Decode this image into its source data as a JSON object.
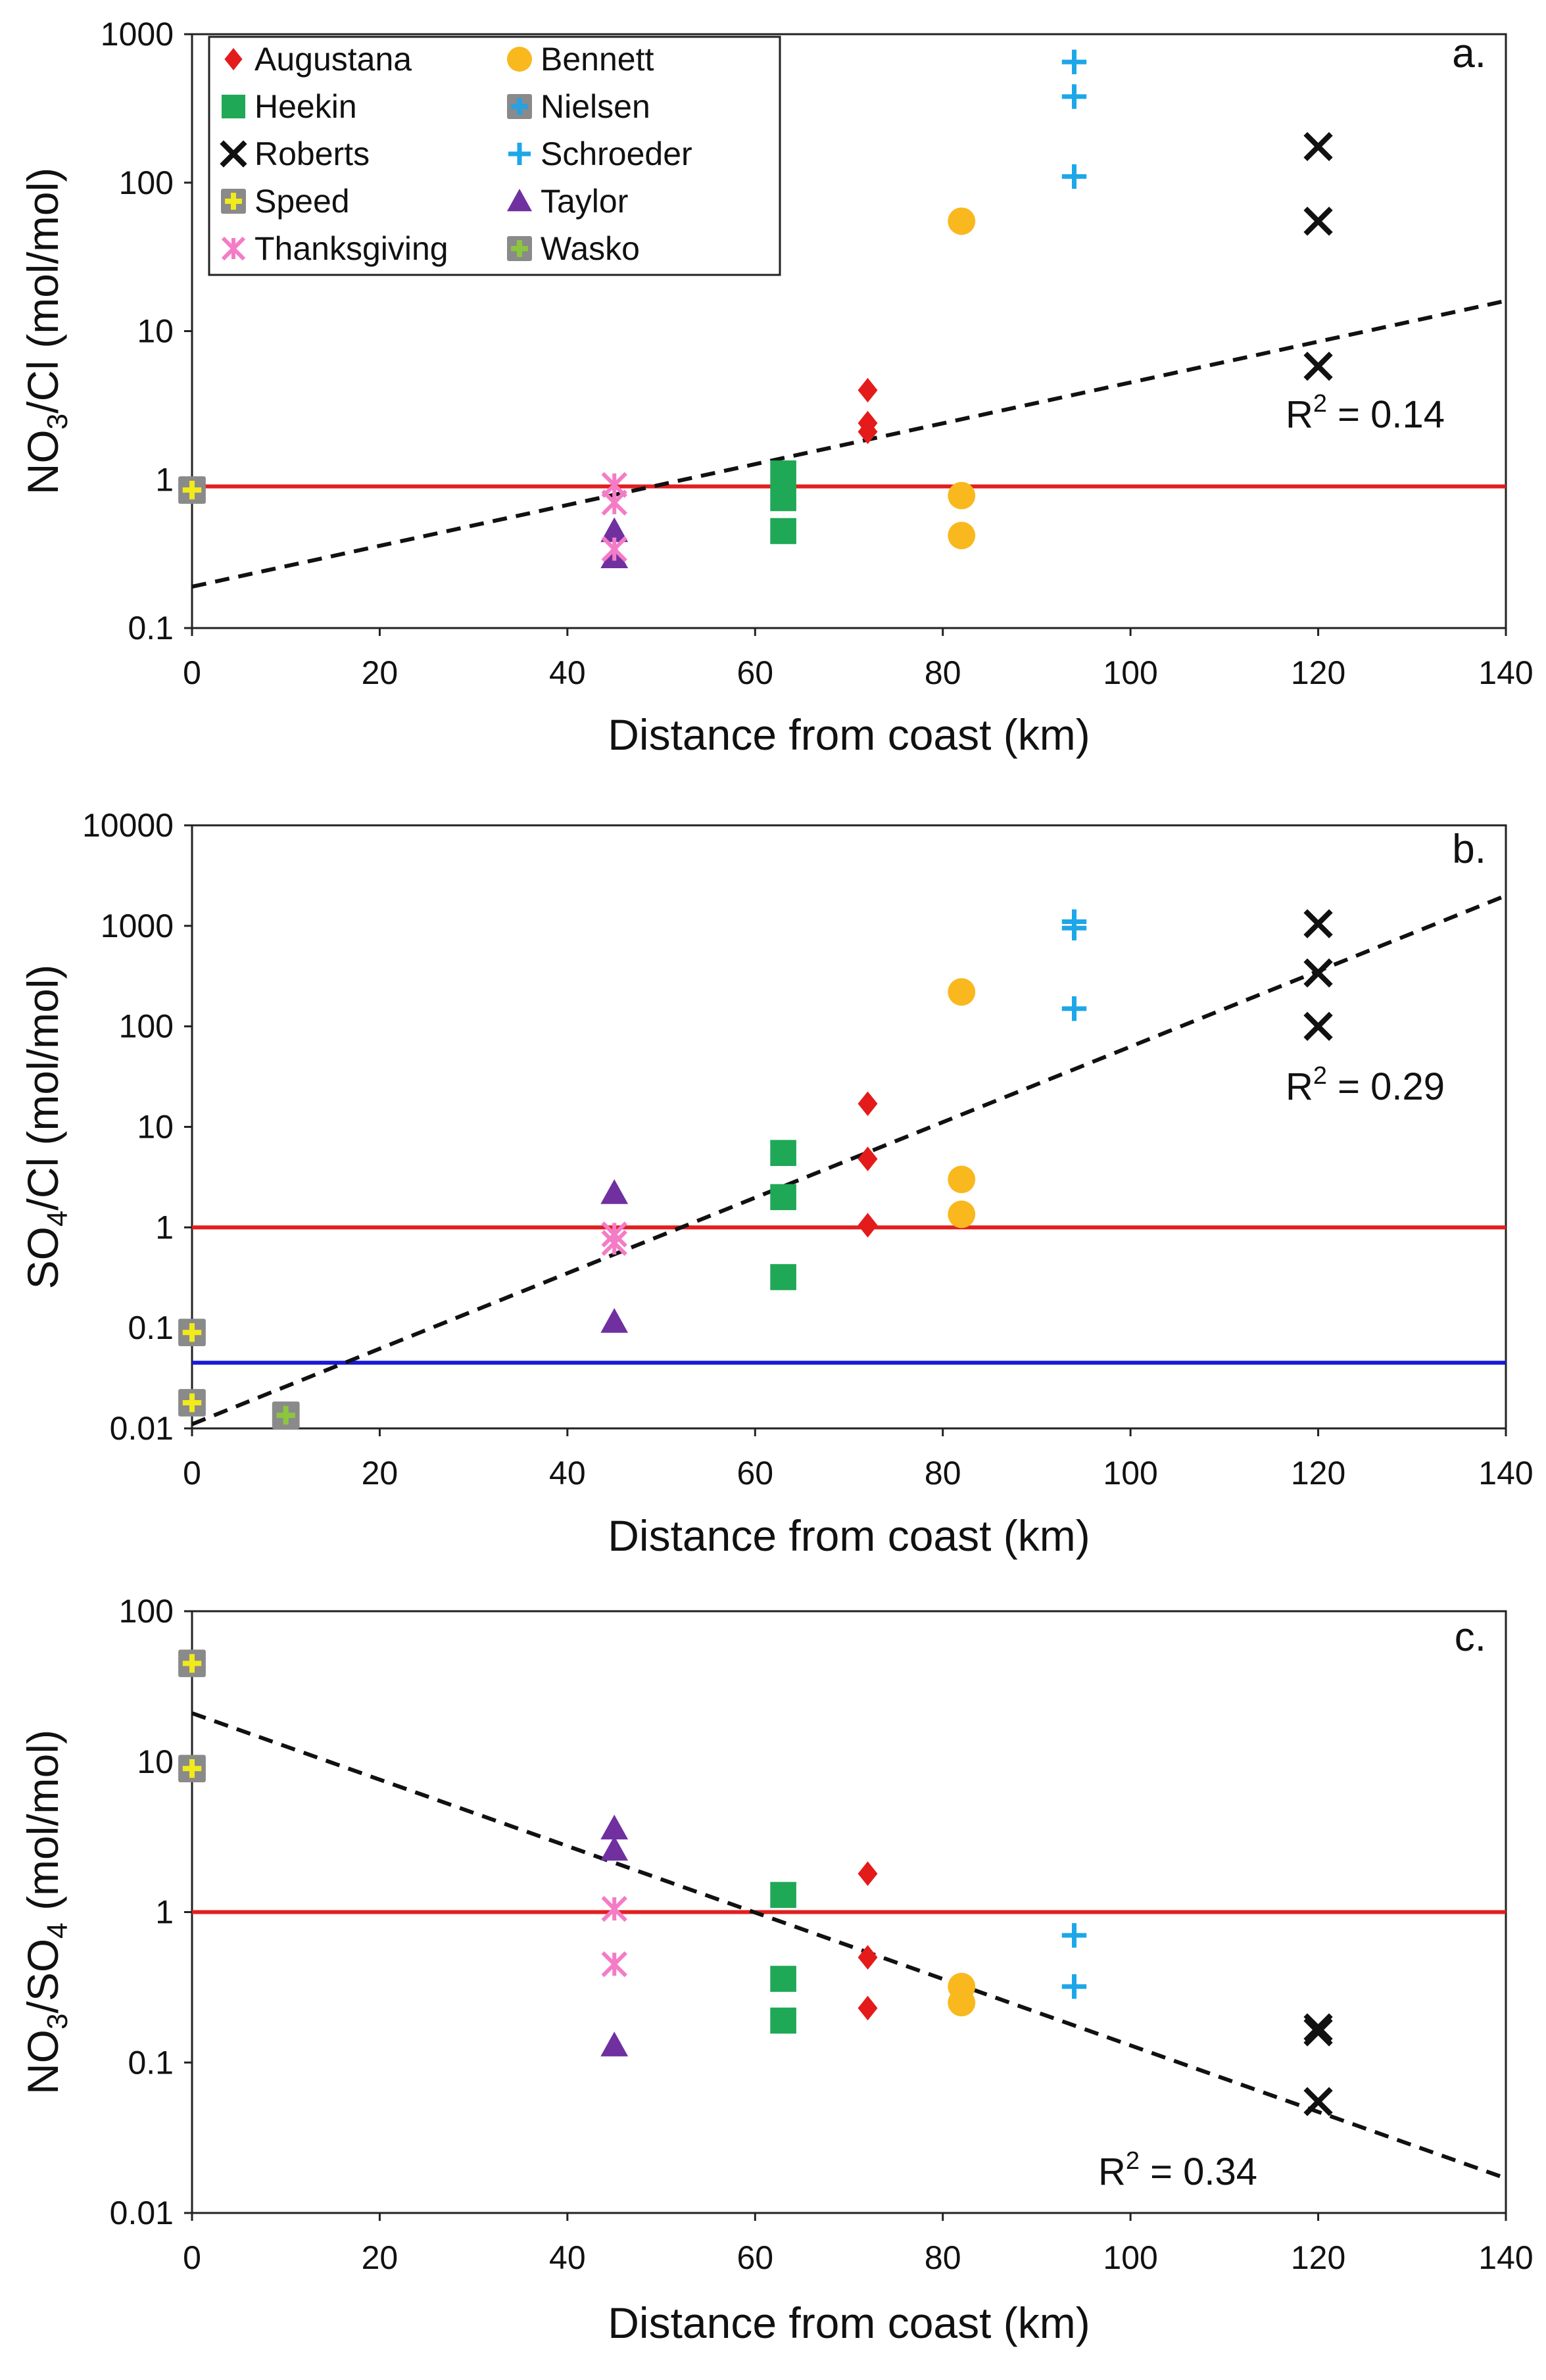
{
  "chart_data": [
    {
      "panel": "a.",
      "type": "scatter",
      "xlabel": "Distance from coast (km)",
      "ylabel_parts": [
        "NO",
        "3",
        "/Cl (mol/mol)"
      ],
      "yscale": "log",
      "xlim": [
        0,
        140
      ],
      "ylim": [
        0.1,
        1000
      ],
      "xticks": [
        "0",
        "20",
        "40",
        "60",
        "80",
        "100",
        "120",
        "140"
      ],
      "yticks": [
        "0.1",
        "1",
        "10",
        "100",
        "1000"
      ],
      "legend_position": "top-left",
      "r2_text": "R² = 0.14",
      "r2_base": "R",
      "r2_sup": "2",
      "r2_rest": " = 0.14",
      "reference_lines": [
        {
          "y": 0.9,
          "color": "#e11f1f"
        }
      ],
      "trendline": {
        "x": [
          0,
          140
        ],
        "y": [
          0.19,
          16
        ],
        "style": "dashed"
      },
      "series": [
        {
          "name": "Augustana",
          "marker": "diamond",
          "color": "#e41b1b",
          "x": [
            72,
            72,
            72
          ],
          "y": [
            4,
            2.4,
            2.1
          ]
        },
        {
          "name": "Bennett",
          "marker": "circle",
          "color": "#f9b81e",
          "x": [
            82,
            82,
            82
          ],
          "y": [
            55,
            0.78,
            0.42
          ]
        },
        {
          "name": "Heekin",
          "marker": "square",
          "color": "#1fa856",
          "x": [
            63,
            63,
            63
          ],
          "y": [
            1.1,
            0.75,
            0.45
          ]
        },
        {
          "name": "Nielsen",
          "marker": "plus-box",
          "color": "#2aa0e0",
          "x": [],
          "y": []
        },
        {
          "name": "Roberts",
          "marker": "x",
          "color": "#111111",
          "x": [
            120,
            120,
            120
          ],
          "y": [
            175,
            55,
            5.8
          ]
        },
        {
          "name": "Schroeder",
          "marker": "plus",
          "color": "#1ea7e8",
          "x": [
            94,
            94,
            94
          ],
          "y": [
            650,
            380,
            110
          ]
        },
        {
          "name": "Speed",
          "marker": "plus-box",
          "color": "#f2ea1a",
          "x": [
            0
          ],
          "y": [
            0.85
          ]
        },
        {
          "name": "Taylor",
          "marker": "triangle",
          "color": "#7030a0",
          "x": [
            45,
            45
          ],
          "y": [
            0.45,
            0.3
          ]
        },
        {
          "name": "Thanksgiving",
          "marker": "asterisk",
          "color": "#f47cc6",
          "x": [
            45,
            45,
            45
          ],
          "y": [
            0.92,
            0.7,
            0.34
          ]
        },
        {
          "name": "Wasko",
          "marker": "plus-box",
          "color": "#8cc63f",
          "x": [],
          "y": []
        }
      ]
    },
    {
      "panel": "b.",
      "type": "scatter",
      "xlabel": "Distance from coast (km)",
      "ylabel_parts": [
        "SO",
        "4",
        "/Cl (mol/mol)"
      ],
      "yscale": "log",
      "xlim": [
        0,
        140
      ],
      "ylim": [
        0.01,
        10000
      ],
      "xticks": [
        "0",
        "20",
        "40",
        "60",
        "80",
        "100",
        "120",
        "140"
      ],
      "yticks": [
        "0.01",
        "0.1",
        "1",
        "10",
        "100",
        "1000",
        "10000"
      ],
      "r2_text": "R² = 0.29",
      "r2_base": "R",
      "r2_sup": "2",
      "r2_rest": " = 0.29",
      "reference_lines": [
        {
          "y": 1,
          "color": "#e11f1f"
        },
        {
          "y": 0.045,
          "color": "#1a1ad6"
        }
      ],
      "trendline": {
        "x": [
          0,
          140
        ],
        "y": [
          0.011,
          2000
        ],
        "style": "dashed"
      },
      "series": [
        {
          "name": "Augustana",
          "marker": "diamond",
          "color": "#e41b1b",
          "x": [
            72,
            72,
            72
          ],
          "y": [
            17,
            4.8,
            1.05
          ]
        },
        {
          "name": "Bennett",
          "marker": "circle",
          "color": "#f9b81e",
          "x": [
            82,
            82,
            82
          ],
          "y": [
            220,
            3,
            1.35
          ]
        },
        {
          "name": "Heekin",
          "marker": "square",
          "color": "#1fa856",
          "x": [
            63,
            63,
            63
          ],
          "y": [
            5.5,
            2,
            0.32
          ]
        },
        {
          "name": "Roberts",
          "marker": "x",
          "color": "#111111",
          "x": [
            120,
            120,
            120
          ],
          "y": [
            1050,
            340,
            100
          ]
        },
        {
          "name": "Schroeder",
          "marker": "plus",
          "color": "#1ea7e8",
          "x": [
            94,
            94,
            94
          ],
          "y": [
            1100,
            950,
            150
          ]
        },
        {
          "name": "Speed",
          "marker": "plus-box",
          "color": "#f2ea1a",
          "x": [
            0,
            0
          ],
          "y": [
            0.09,
            0.018
          ]
        },
        {
          "name": "Taylor",
          "marker": "triangle",
          "color": "#7030a0",
          "x": [
            45,
            45
          ],
          "y": [
            2.2,
            0.115
          ]
        },
        {
          "name": "Thanksgiving",
          "marker": "asterisk",
          "color": "#f47cc6",
          "x": [
            45,
            45
          ],
          "y": [
            0.85,
            0.7
          ]
        },
        {
          "name": "Wasko",
          "marker": "plus-box",
          "color": "#8cc63f",
          "x": [
            10
          ],
          "y": [
            0.0135
          ]
        }
      ]
    },
    {
      "panel": "c.",
      "type": "scatter",
      "xlabel": "Distance from coast (km)",
      "ylabel_parts": [
        "NO",
        "3",
        "/SO",
        "4",
        " (mol/mol)"
      ],
      "yscale": "log",
      "xlim": [
        0,
        140
      ],
      "ylim": [
        0.01,
        100
      ],
      "xticks": [
        "0",
        "20",
        "40",
        "60",
        "80",
        "100",
        "120",
        "140"
      ],
      "yticks": [
        "0.01",
        "0.1",
        "1",
        "10",
        "100"
      ],
      "r2_text": "R² = 0.34",
      "r2_base": "R",
      "r2_sup": "2",
      "r2_rest": " = 0.34",
      "reference_lines": [
        {
          "y": 1,
          "color": "#e11f1f"
        }
      ],
      "trendline": {
        "x": [
          0,
          140
        ],
        "y": [
          21,
          0.017
        ],
        "style": "dashed"
      },
      "series": [
        {
          "name": "Augustana",
          "marker": "diamond",
          "color": "#e41b1b",
          "x": [
            72,
            72,
            72
          ],
          "y": [
            1.8,
            0.5,
            0.23
          ]
        },
        {
          "name": "Bennett",
          "marker": "circle",
          "color": "#f9b81e",
          "x": [
            82,
            82
          ],
          "y": [
            0.32,
            0.25
          ]
        },
        {
          "name": "Heekin",
          "marker": "square",
          "color": "#1fa856",
          "x": [
            63,
            63,
            63
          ],
          "y": [
            1.3,
            0.36,
            0.19
          ]
        },
        {
          "name": "Roberts",
          "marker": "x",
          "color": "#111111",
          "x": [
            120,
            120,
            120
          ],
          "y": [
            0.17,
            0.16,
            0.055
          ]
        },
        {
          "name": "Schroeder",
          "marker": "plus",
          "color": "#1ea7e8",
          "x": [
            94,
            94
          ],
          "y": [
            0.7,
            0.32
          ]
        },
        {
          "name": "Speed",
          "marker": "plus-box",
          "color": "#f2ea1a",
          "x": [
            0,
            0
          ],
          "y": [
            45,
            9
          ]
        },
        {
          "name": "Taylor",
          "marker": "triangle",
          "color": "#7030a0",
          "x": [
            45,
            45,
            45
          ],
          "y": [
            3.6,
            2.6,
            0.13
          ]
        },
        {
          "name": "Thanksgiving",
          "marker": "asterisk",
          "color": "#f47cc6",
          "x": [
            45,
            45
          ],
          "y": [
            1.05,
            0.45
          ]
        }
      ]
    }
  ],
  "legend": [
    {
      "name": "Augustana",
      "marker": "diamond",
      "color": "#e41b1b"
    },
    {
      "name": "Bennett",
      "marker": "circle",
      "color": "#f9b81e"
    },
    {
      "name": "Heekin",
      "marker": "square",
      "color": "#1fa856"
    },
    {
      "name": "Nielsen",
      "marker": "plus-box",
      "color": "#2aa0e0"
    },
    {
      "name": "Roberts",
      "marker": "x",
      "color": "#111111"
    },
    {
      "name": "Schroeder",
      "marker": "plus",
      "color": "#1ea7e8"
    },
    {
      "name": "Speed",
      "marker": "plus-box",
      "color": "#f2ea1a"
    },
    {
      "name": "Taylor",
      "marker": "triangle",
      "color": "#7030a0"
    },
    {
      "name": "Thanksgiving",
      "marker": "asterisk",
      "color": "#f47cc6"
    },
    {
      "name": "Wasko",
      "marker": "plus-box",
      "color": "#8cc63f"
    }
  ],
  "plus_box_fill": "#8a8a8a"
}
